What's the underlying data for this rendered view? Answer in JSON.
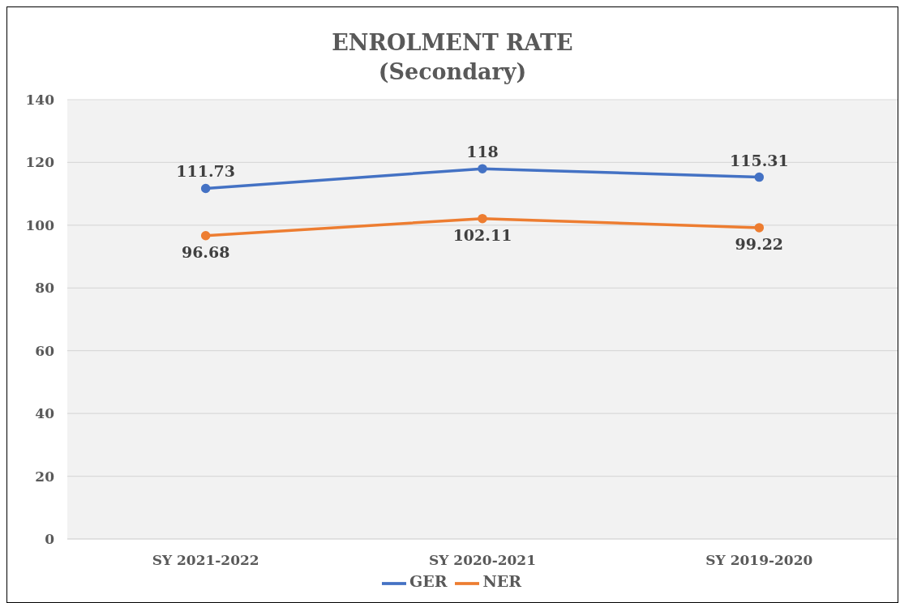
{
  "chart_data": {
    "type": "line",
    "title": "ENROLMENT RATE",
    "subtitle": "(Secondary)",
    "categories": [
      "SY 2021-2022",
      "SY 2020-2021",
      "SY 2019-2020"
    ],
    "series": [
      {
        "name": "GER",
        "color": "#4472c4",
        "values": [
          111.73,
          118,
          115.31
        ]
      },
      {
        "name": "NER",
        "color": "#ed7d31",
        "values": [
          96.68,
          102.11,
          99.22
        ]
      }
    ],
    "ylim": [
      0,
      140
    ],
    "yticks": [
      0,
      20,
      40,
      60,
      80,
      100,
      120,
      140
    ],
    "grid": "y",
    "legend": "bottom",
    "marker": "circle",
    "line_style": "solid",
    "data_labels": true
  }
}
